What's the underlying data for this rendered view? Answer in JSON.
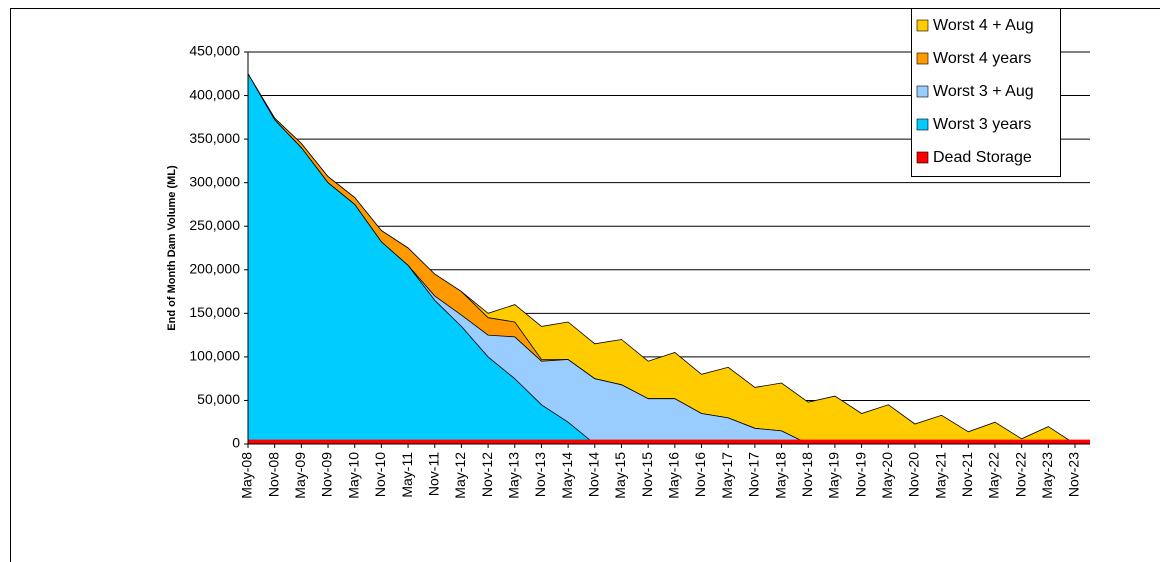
{
  "chart_data": {
    "type": "area",
    "y_label": "End of Month Dam Volume (ML)",
    "categories": [
      "May-08",
      "Nov-08",
      "May-09",
      "Nov-09",
      "May-10",
      "Nov-10",
      "May-11",
      "Nov-11",
      "May-12",
      "Nov-12",
      "May-13",
      "Nov-13",
      "May-14",
      "Nov-14",
      "May-15",
      "Nov-15",
      "May-16",
      "Nov-16",
      "May-17",
      "Nov-17",
      "May-18",
      "Nov-18",
      "May-19",
      "Nov-19",
      "May-20",
      "Nov-20",
      "May-21",
      "Nov-21",
      "May-22",
      "Nov-22",
      "May-23",
      "Nov-23"
    ],
    "series": [
      {
        "name": "Worst 4 + Aug",
        "color": "#ffcc00",
        "values": [
          425000,
          374000,
          345000,
          307000,
          283000,
          245000,
          225000,
          195000,
          175000,
          150000,
          160000,
          135000,
          140000,
          115000,
          120000,
          95000,
          105000,
          80000,
          88000,
          65000,
          70000,
          48000,
          55000,
          35000,
          45000,
          23000,
          33000,
          14000,
          25000,
          6000,
          20000,
          0
        ]
      },
      {
        "name": "Worst 4 years",
        "color": "#ff9900",
        "values": [
          425000,
          374000,
          345000,
          307000,
          283000,
          245000,
          225000,
          195000,
          175000,
          145000,
          140000,
          97000,
          97000,
          75000,
          68000,
          52000,
          52000,
          35000,
          30000,
          18000,
          15000,
          0,
          0,
          0,
          0,
          0,
          0,
          0,
          0,
          0,
          0,
          0
        ]
      },
      {
        "name": "Worst 3 + Aug",
        "color": "#99ccff",
        "values": [
          425000,
          372000,
          340000,
          300000,
          275000,
          232000,
          205000,
          170000,
          148000,
          125000,
          123000,
          95000,
          97000,
          75000,
          68000,
          52000,
          52000,
          35000,
          30000,
          18000,
          15000,
          0,
          0,
          0,
          0,
          0,
          0,
          0,
          0,
          0,
          0,
          0
        ]
      },
      {
        "name": "Worst 3 years",
        "color": "#00ccff",
        "values": [
          425000,
          372000,
          340000,
          300000,
          275000,
          232000,
          205000,
          165000,
          135000,
          100000,
          75000,
          45000,
          25000,
          0,
          0,
          0,
          0,
          0,
          0,
          0,
          0,
          0,
          0,
          0,
          0,
          0,
          0,
          0,
          0,
          0,
          0,
          0
        ]
      },
      {
        "name": "Dead Storage",
        "color": "#ff0000",
        "values": [
          5000,
          5000,
          5000,
          5000,
          5000,
          5000,
          5000,
          5000,
          5000,
          5000,
          5000,
          5000,
          5000,
          5000,
          5000,
          5000,
          5000,
          5000,
          5000,
          5000,
          5000,
          5000,
          5000,
          5000,
          5000,
          5000,
          5000,
          5000,
          5000,
          5000,
          5000,
          5000
        ]
      }
    ],
    "ylim": [
      0,
      450000
    ],
    "yticks": [
      0,
      {
        "value": 50000,
        "label": "50,000"
      },
      {
        "value": 100000,
        "label": "100,000"
      },
      {
        "value": 150000,
        "label": "150,000"
      },
      {
        "value": 200000,
        "label": "200,000"
      },
      {
        "value": 250000,
        "label": "250,000"
      },
      {
        "value": 300000,
        "label": "300,000"
      },
      {
        "value": 350000,
        "label": "350,000"
      },
      {
        "value": 400000,
        "label": "400,000"
      },
      {
        "value": 450000,
        "label": "450,000"
      }
    ],
    "grid": true,
    "legend": "top-right"
  }
}
